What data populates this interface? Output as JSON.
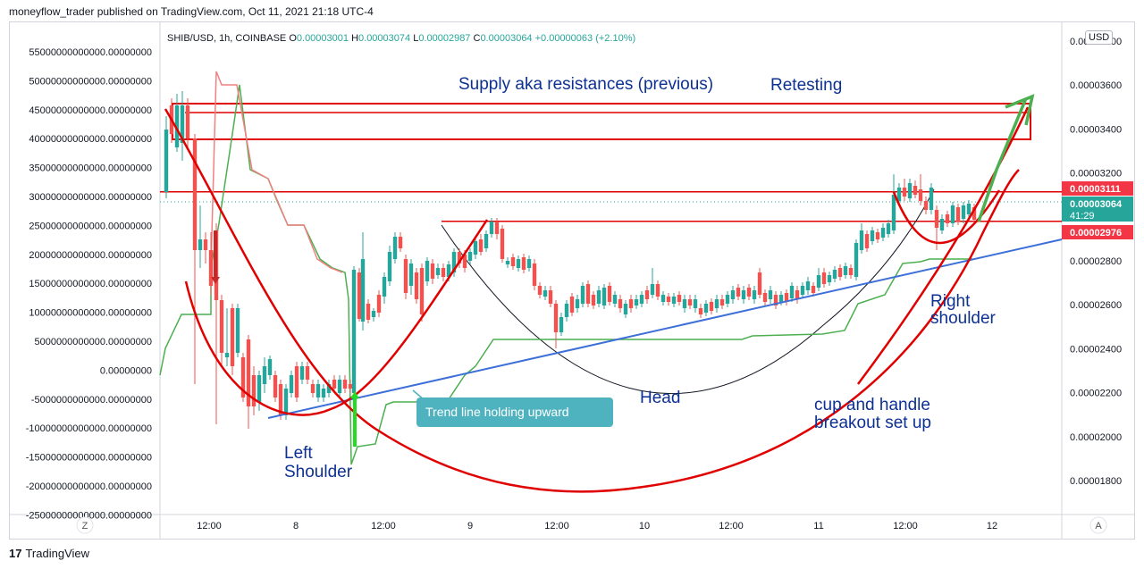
{
  "header": {
    "text": "moneyflow_trader published on TradingView.com, Oct 11, 2021 21:18 UTC-4"
  },
  "footer": {
    "logo": "17",
    "brand": "TradingView"
  },
  "legend": {
    "symbol": "SHIB/USD, 1h, COINBASE",
    "open_label": "O",
    "open": "0.00003001",
    "high_label": "H",
    "high": "0.00003074",
    "low_label": "L",
    "low": "0.00002987",
    "close_label": "C",
    "close": "0.00003064",
    "change": "+0.00000063 (+2.10%)"
  },
  "currency": "USD",
  "corner_left": "Z",
  "corner_right": "A",
  "colors": {
    "up": "#26a69a",
    "down": "#ef5350",
    "red_line": "#e00000",
    "trend": "#3d6fd9",
    "green_ind": "#4caf50",
    "callout": "#4fb3bf",
    "text_blue": "#0d3193"
  },
  "annotations": {
    "supply": "Supply aka resistances (previous)",
    "retesting": "Retesting",
    "head": "Head",
    "left_shoulder_1": "Left",
    "left_shoulder_2": "Shoulder",
    "right_shoulder_1": "Right",
    "right_shoulder_2": "shoulder",
    "cup_1": "cup and handle",
    "cup_2": "breakout set up",
    "trend_callout": "Trend line holding upward"
  },
  "chart_data": {
    "type": "candlestick",
    "symbol": "SHIB/USD",
    "interval": "1h",
    "y_right_ticks": [
      "0.00003800",
      "0.00003600",
      "0.00003400",
      "0.00003200",
      "0.00003000",
      "0.00002800",
      "0.00002600",
      "0.00002400",
      "0.00002200",
      "0.00002000",
      "0.00001800"
    ],
    "y_left_ticks": [
      "55000000000000.00000000",
      "50000000000000.00000000",
      "45000000000000.00000000",
      "40000000000000.00000000",
      "35000000000000.00000000",
      "30000000000000.00000000",
      "25000000000000.00000000",
      "20000000000000.00000000",
      "15000000000000.00000000",
      "10000000000000.00000000",
      "5000000000000.00000000",
      "0.00000000",
      "-5000000000000.00000000",
      "-10000000000000.00000000",
      "-15000000000000.00000000",
      "-20000000000000.00000000",
      "-25000000000000.00000000"
    ],
    "x_ticks": [
      "12:00",
      "8",
      "12:00",
      "9",
      "12:00",
      "10",
      "12:00",
      "11",
      "12:00",
      "12"
    ],
    "price_labels": [
      {
        "value": "0.00003111",
        "color": "#f23645"
      },
      {
        "value": "0.00003064",
        "sub": "41:29",
        "color": "#26a69a"
      },
      {
        "value": "0.00002976",
        "color": "#f23645"
      }
    ],
    "resistance_levels": [
      3.11e-05,
      2.976e-05
    ]
  }
}
